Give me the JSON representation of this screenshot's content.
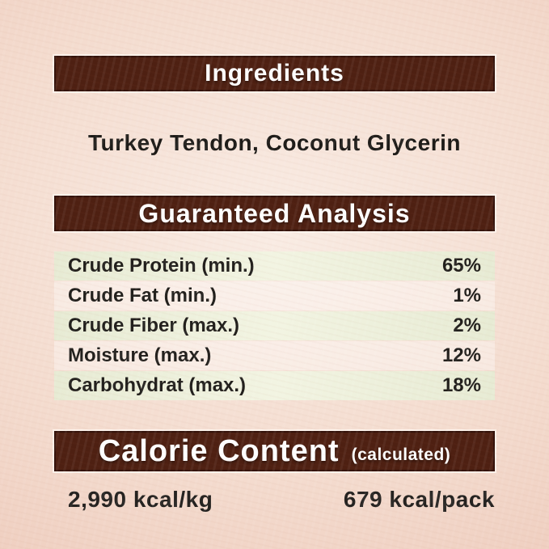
{
  "ingredients": {
    "header": "Ingredients",
    "list": "Turkey Tendon, Coconut Glycerin"
  },
  "guaranteed_analysis": {
    "header": "Guaranteed Analysis",
    "rows": [
      {
        "label": "Crude Protein (min.)",
        "value": "65%"
      },
      {
        "label": "Crude Fat (min.)",
        "value": "1%"
      },
      {
        "label": "Crude Fiber (max.)",
        "value": "2%"
      },
      {
        "label": "Moisture (max.)",
        "value": "12%"
      },
      {
        "label": "Carbohydrat (max.)",
        "value": "18%"
      }
    ]
  },
  "calorie_content": {
    "header": "Calorie Content",
    "header_note": "(calculated)",
    "per_kg": "2,990 kcal/kg",
    "per_pack": "679 kcal/pack"
  },
  "colors": {
    "header_bar": "#4e2012",
    "header_bar_border": "#33120a",
    "header_text": "#ffffff",
    "row_alt_background": "#eaeed8",
    "page_background": "#f2d8ca",
    "body_text": "#1d1b18"
  }
}
